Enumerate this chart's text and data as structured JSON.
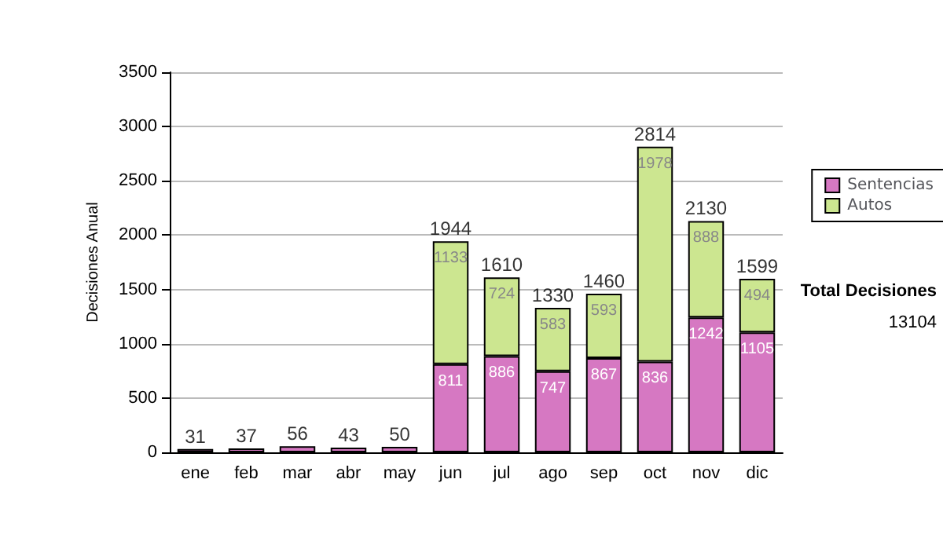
{
  "chart_data": {
    "type": "bar",
    "stacked": true,
    "ylabel": "Decisiones Anual",
    "categories": [
      "ene",
      "feb",
      "mar",
      "abr",
      "may",
      "jun",
      "jul",
      "ago",
      "sep",
      "oct",
      "nov",
      "dic"
    ],
    "series": [
      {
        "name": "Sentencias",
        "color": "#d678c2",
        "values": [
          31,
          37,
          56,
          43,
          50,
          811,
          886,
          747,
          867,
          836,
          1242,
          1105
        ],
        "value_labels": [
          null,
          null,
          null,
          null,
          null,
          "811",
          "886",
          "747",
          "867",
          "836",
          "1242",
          "1105"
        ]
      },
      {
        "name": "Autos",
        "color": "#cce690",
        "values": [
          null,
          null,
          null,
          null,
          null,
          1133,
          724,
          583,
          593,
          1978,
          888,
          494
        ],
        "value_labels": [
          null,
          null,
          null,
          null,
          null,
          "1133",
          "724",
          "583",
          "593",
          "1978",
          "888",
          "494"
        ]
      }
    ],
    "totals": [
      "31",
      "37",
      "56",
      "43",
      "50",
      "1944",
      "1610",
      "1330",
      "1460",
      "2814",
      "2130",
      "1599"
    ],
    "ylim": [
      0,
      3500
    ],
    "yticks": [
      0,
      500,
      1000,
      1500,
      2000,
      2500,
      3000,
      3500
    ],
    "grid": "y",
    "legend": "right",
    "annotations": [
      "Total Decisiones",
      "13104"
    ]
  }
}
